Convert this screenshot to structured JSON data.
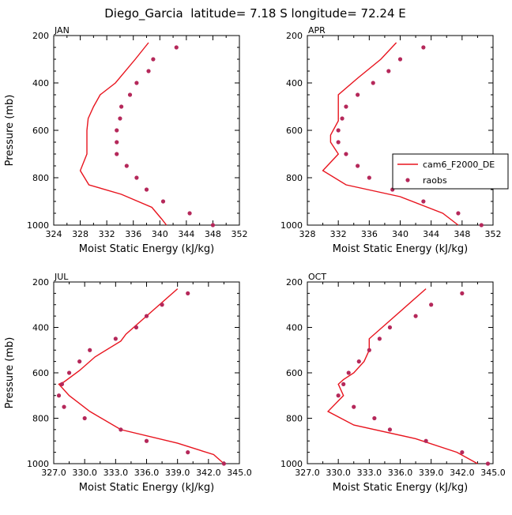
{
  "figure": {
    "title": "Diego_Garcia  latitude= 7.18 S longitude= 72.24 E"
  },
  "chart_data": [
    {
      "type": "line",
      "panel": "JAN",
      "xlabel": "Moist Static Energy (kJ/kg)",
      "ylabel": "Pressure (mb)",
      "xlim": [
        324,
        352
      ],
      "ylim": [
        1000,
        200
      ],
      "xticks": [
        324,
        328,
        332,
        336,
        340,
        344,
        348,
        352
      ],
      "xtick_labels": [
        "324",
        "328",
        "332",
        "336",
        "340",
        "344",
        "348",
        "352"
      ],
      "yticks": [
        200,
        400,
        600,
        800,
        1000
      ],
      "ytick_labels": [
        "200",
        "400",
        "600",
        "800",
        "1000"
      ],
      "series": [
        {
          "name": "cam6_F2000_DE",
          "kind": "line",
          "points": [
            [
              338.3,
              230
            ],
            [
              336.3,
              300
            ],
            [
              333.3,
              400
            ],
            [
              331.0,
              450
            ],
            [
              330.0,
              500
            ],
            [
              329.2,
              550
            ],
            [
              329.0,
              600
            ],
            [
              329.0,
              700
            ],
            [
              328.0,
              770
            ],
            [
              329.3,
              830
            ],
            [
              334.2,
              870
            ],
            [
              338.8,
              925
            ],
            [
              340.3,
              975
            ],
            [
              341.0,
              1000
            ]
          ]
        },
        {
          "name": "raobs",
          "kind": "scatter",
          "points": [
            [
              342.5,
              250
            ],
            [
              339.0,
              300
            ],
            [
              338.3,
              350
            ],
            [
              336.5,
              400
            ],
            [
              335.5,
              450
            ],
            [
              334.2,
              500
            ],
            [
              334.0,
              550
            ],
            [
              333.5,
              600
            ],
            [
              333.5,
              650
            ],
            [
              333.5,
              700
            ],
            [
              335.0,
              750
            ],
            [
              336.5,
              800
            ],
            [
              338.0,
              850
            ],
            [
              340.5,
              900
            ],
            [
              344.5,
              950
            ],
            [
              348.0,
              1000
            ]
          ]
        }
      ]
    },
    {
      "type": "line",
      "panel": "APR",
      "xlabel": "Moist Static Energy (kJ/kg)",
      "ylabel": "",
      "xlim": [
        328,
        352
      ],
      "ylim": [
        1000,
        200
      ],
      "xticks": [
        328,
        332,
        336,
        340,
        344,
        348,
        352
      ],
      "xtick_labels": [
        "328",
        "332",
        "336",
        "340",
        "344",
        "348",
        "352"
      ],
      "yticks": [
        200,
        400,
        600,
        800,
        1000
      ],
      "ytick_labels": [
        "200",
        "400",
        "600",
        "800",
        "1000"
      ],
      "legend": {
        "position": "right",
        "entries": [
          "cam6_F2000_DE",
          "raobs"
        ]
      },
      "series": [
        {
          "name": "cam6_F2000_DE",
          "kind": "line",
          "points": [
            [
              339.5,
              230
            ],
            [
              337.5,
              300
            ],
            [
              334.5,
              380
            ],
            [
              332.0,
              450
            ],
            [
              332.0,
              500
            ],
            [
              332.0,
              560
            ],
            [
              331.0,
              620
            ],
            [
              331.0,
              650
            ],
            [
              332.0,
              700
            ],
            [
              330.0,
              770
            ],
            [
              333.0,
              830
            ],
            [
              340.0,
              880
            ],
            [
              345.5,
              950
            ],
            [
              347.5,
              1000
            ]
          ]
        },
        {
          "name": "raobs",
          "kind": "scatter",
          "points": [
            [
              343.0,
              250
            ],
            [
              340.0,
              300
            ],
            [
              338.5,
              350
            ],
            [
              336.5,
              400
            ],
            [
              334.5,
              450
            ],
            [
              333.0,
              500
            ],
            [
              332.5,
              550
            ],
            [
              332.0,
              600
            ],
            [
              332.0,
              650
            ],
            [
              333.0,
              700
            ],
            [
              334.5,
              750
            ],
            [
              336.0,
              800
            ],
            [
              339.0,
              850
            ],
            [
              343.0,
              900
            ],
            [
              347.5,
              950
            ],
            [
              350.5,
              1000
            ]
          ]
        }
      ]
    },
    {
      "type": "line",
      "panel": "JUL",
      "xlabel": "Moist Static Energy (kJ/kg)",
      "ylabel": "Pressure (mb)",
      "xlim": [
        327,
        345
      ],
      "ylim": [
        1000,
        200
      ],
      "xticks": [
        327,
        330,
        333,
        336,
        339,
        342,
        345
      ],
      "xtick_labels": [
        "327.0",
        "330.0",
        "333.0",
        "336.0",
        "339.0",
        "342.0",
        "345.0"
      ],
      "yticks": [
        200,
        400,
        600,
        800,
        1000
      ],
      "ytick_labels": [
        "200",
        "400",
        "600",
        "800",
        "1000"
      ],
      "series": [
        {
          "name": "cam6_F2000_DE",
          "kind": "line",
          "points": [
            [
              339.0,
              230
            ],
            [
              336.5,
              330
            ],
            [
              334.0,
              430
            ],
            [
              333.5,
              460
            ],
            [
              331.0,
              530
            ],
            [
              329.5,
              590
            ],
            [
              328.0,
              640
            ],
            [
              327.5,
              650
            ],
            [
              328.5,
              700
            ],
            [
              330.5,
              770
            ],
            [
              333.5,
              850
            ],
            [
              339.0,
              910
            ],
            [
              342.5,
              960
            ],
            [
              343.5,
              1000
            ]
          ]
        },
        {
          "name": "raobs",
          "kind": "scatter",
          "points": [
            [
              340.0,
              250
            ],
            [
              337.5,
              300
            ],
            [
              336.0,
              350
            ],
            [
              335.0,
              400
            ],
            [
              333.0,
              450
            ],
            [
              330.5,
              500
            ],
            [
              329.5,
              550
            ],
            [
              328.5,
              600
            ],
            [
              327.8,
              650
            ],
            [
              327.5,
              700
            ],
            [
              328.0,
              750
            ],
            [
              330.0,
              800
            ],
            [
              333.5,
              850
            ],
            [
              336.0,
              900
            ],
            [
              340.0,
              950
            ],
            [
              343.5,
              1000
            ]
          ]
        }
      ]
    },
    {
      "type": "line",
      "panel": "OCT",
      "xlabel": "Moist Static Energy (kJ/kg)",
      "ylabel": "",
      "xlim": [
        327,
        345
      ],
      "ylim": [
        1000,
        200
      ],
      "xticks": [
        327,
        330,
        333,
        336,
        339,
        342,
        345
      ],
      "xtick_labels": [
        "327.0",
        "330.0",
        "333.0",
        "336.0",
        "339.0",
        "342.0",
        "345.0"
      ],
      "yticks": [
        200,
        400,
        600,
        800,
        1000
      ],
      "ytick_labels": [
        "200",
        "400",
        "600",
        "800",
        "1000"
      ],
      "series": [
        {
          "name": "cam6_F2000_DE",
          "kind": "line",
          "points": [
            [
              338.5,
              230
            ],
            [
              333.0,
              450
            ],
            [
              333.0,
              500
            ],
            [
              332.5,
              550
            ],
            [
              331.5,
              600
            ],
            [
              330.5,
              630
            ],
            [
              330.0,
              650
            ],
            [
              330.5,
              700
            ],
            [
              329.0,
              770
            ],
            [
              331.5,
              830
            ],
            [
              337.5,
              890
            ],
            [
              341.5,
              950
            ],
            [
              343.5,
              1000
            ]
          ]
        },
        {
          "name": "raobs",
          "kind": "scatter",
          "points": [
            [
              342.0,
              250
            ],
            [
              339.0,
              300
            ],
            [
              337.5,
              350
            ],
            [
              335.0,
              400
            ],
            [
              334.0,
              450
            ],
            [
              333.0,
              500
            ],
            [
              332.0,
              550
            ],
            [
              331.0,
              600
            ],
            [
              330.5,
              650
            ],
            [
              330.0,
              700
            ],
            [
              331.5,
              750
            ],
            [
              333.5,
              800
            ],
            [
              335.0,
              850
            ],
            [
              338.5,
              900
            ],
            [
              342.0,
              950
            ],
            [
              344.5,
              1000
            ]
          ]
        }
      ]
    }
  ]
}
